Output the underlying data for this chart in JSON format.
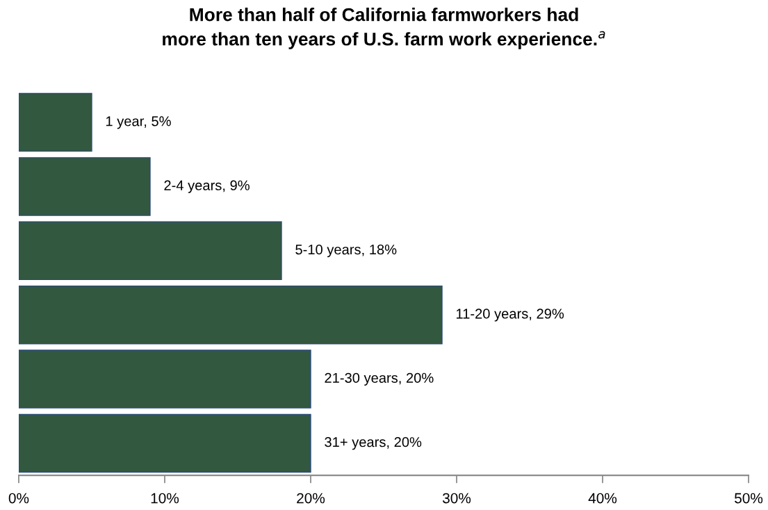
{
  "chart_data": {
    "type": "bar",
    "orientation": "horizontal",
    "title": "More than half of California farmworkers had\nmore than ten years of U.S. farm work experience.$^{a}$",
    "categories": [
      null,
      null,
      null,
      null,
      null,
      null
    ],
    "values": [
      5,
      9,
      18,
      29,
      20,
      20
    ],
    "color": "#335840",
    "value_labels": [
      "1 year, 5%",
      "2-4 years, 9%",
      "5-10 years, 18%",
      "11-20 years, 29%",
      "21-30 years, 20%",
      "31+ years, 20%"
    ],
    "xlim": [
      0,
      50
    ],
    "xticks": [
      {
        "value": 0,
        "label": "0%"
      },
      {
        "value": 10,
        "label": "10%"
      },
      {
        "value": 20,
        "label": "20%"
      },
      {
        "value": 30,
        "label": "30%"
      },
      {
        "value": 40,
        "label": "40%"
      },
      {
        "value": 50,
        "label": "50%"
      }
    ],
    "tick_labels": "x",
    "grid": false
  }
}
